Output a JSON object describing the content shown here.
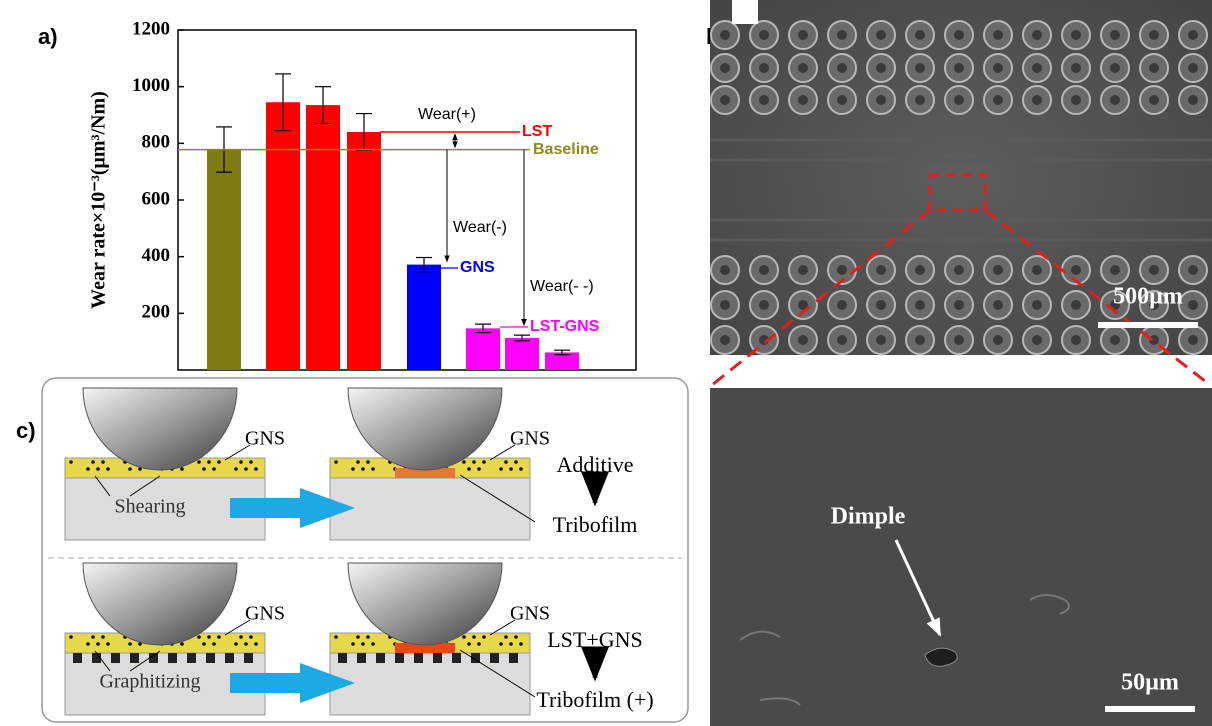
{
  "panel_labels": [
    "a)",
    "b)",
    "c)"
  ],
  "chart_data": {
    "type": "bar",
    "y_label": "Wear rate×10⁻³(μm³/Nm)",
    "categories": [
      null,
      null,
      null,
      null,
      null,
      null,
      null,
      null
    ],
    "values": [
      778,
      945,
      935,
      840,
      372,
      147,
      113,
      62
    ],
    "errors": [
      80,
      100,
      65,
      65,
      25,
      15,
      10,
      8
    ],
    "colors": [
      "#7f7a12",
      "#ff0000",
      "#ff0000",
      "#ff0000",
      "#0000ff",
      "#ff00ff",
      "#ff00ff",
      "#ff00ff"
    ],
    "ylim": [
      0,
      1200
    ],
    "yticks": [
      200,
      400,
      600,
      800,
      1000,
      1200
    ],
    "reference_lines": [
      {
        "label": "LST",
        "value": 840,
        "color": "#ff0000"
      },
      {
        "label": "Baseline",
        "value": 778,
        "color": "#8b8b1e"
      }
    ],
    "group_labels": [
      {
        "label": "GNS",
        "color": "#0000ff"
      },
      {
        "label": "LST-GNS",
        "color": "#ff00ff"
      }
    ],
    "annotations": [
      "Wear(+)",
      "Wear(-)",
      "Wear(- -)"
    ]
  },
  "sem": {
    "scale_bars": [
      "500µm",
      "50µm"
    ],
    "feature_label": "Dimple"
  },
  "diagram": {
    "rows": [
      {
        "particle_labels": [
          "GNS",
          "GNS"
        ],
        "process": "Shearing",
        "condition": "Additive",
        "result": "Tribofilm"
      },
      {
        "particle_labels": [
          "GNS",
          "GNS"
        ],
        "process": "Graphitizing",
        "condition": "LST+GNS",
        "result": "Tribofilm (+)"
      }
    ]
  }
}
